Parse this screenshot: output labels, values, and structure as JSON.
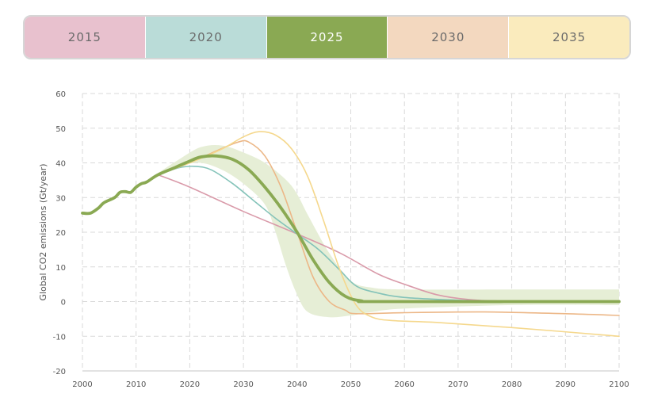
{
  "scenario_tabs": [
    {
      "label": "2015",
      "color": "#e8c1ce",
      "active": false
    },
    {
      "label": "2020",
      "color": "#badcd8",
      "active": false
    },
    {
      "label": "2025",
      "color": "#8aa953",
      "active": true
    },
    {
      "label": "2030",
      "color": "#f3d8bf",
      "active": false
    },
    {
      "label": "2035",
      "color": "#faebbd",
      "active": false
    }
  ],
  "chart_data": {
    "type": "line",
    "title": "",
    "xlabel": "",
    "ylabel": "Global CO2 emissions (Gt/year)",
    "xlim": [
      2000,
      2100
    ],
    "ylim": [
      -20,
      60
    ],
    "x_ticks": [
      "2000",
      "2010",
      "2020",
      "2030",
      "2040",
      "2050",
      "2060",
      "2070",
      "2080",
      "2090",
      "2100"
    ],
    "y_ticks": [
      "60",
      "50",
      "40",
      "30",
      "20",
      "10",
      "0",
      "-10",
      "-20"
    ],
    "grid": true,
    "band": {
      "name": "",
      "color": "#e6eed6",
      "upper": [
        [
          2014,
          37
        ],
        [
          2018,
          41
        ],
        [
          2022,
          44.5
        ],
        [
          2026,
          45
        ],
        [
          2030,
          43
        ],
        [
          2034,
          40
        ],
        [
          2038,
          35
        ],
        [
          2040,
          31
        ],
        [
          2042,
          25
        ],
        [
          2046,
          14
        ],
        [
          2050,
          6
        ],
        [
          2054,
          4
        ],
        [
          2060,
          3.5
        ],
        [
          2080,
          3.5
        ],
        [
          2100,
          3.5
        ]
      ],
      "lower": [
        [
          2014,
          36
        ],
        [
          2018,
          39
        ],
        [
          2022,
          40
        ],
        [
          2026,
          38
        ],
        [
          2030,
          34
        ],
        [
          2034,
          28
        ],
        [
          2036,
          20
        ],
        [
          2038,
          10
        ],
        [
          2040,
          2
        ],
        [
          2042,
          -3
        ],
        [
          2046,
          -4.5
        ],
        [
          2050,
          -4
        ],
        [
          2054,
          -3
        ],
        [
          2060,
          -2
        ],
        [
          2080,
          -1
        ],
        [
          2100,
          -1
        ]
      ]
    },
    "series": [
      {
        "name": "2015",
        "color": "#d99aa9",
        "width": 1.6,
        "points": [
          [
            2014,
            36.6
          ],
          [
            2020,
            33
          ],
          [
            2030,
            26
          ],
          [
            2040,
            19.5
          ],
          [
            2048,
            14
          ],
          [
            2055,
            8
          ],
          [
            2060,
            5
          ],
          [
            2066,
            2
          ],
          [
            2072,
            0.6
          ],
          [
            2080,
            0.1
          ],
          [
            2100,
            0
          ]
        ]
      },
      {
        "name": "2020",
        "color": "#84c3b9",
        "width": 1.6,
        "points": [
          [
            2014,
            36.6
          ],
          [
            2018,
            38.6
          ],
          [
            2021,
            39
          ],
          [
            2024,
            38
          ],
          [
            2028,
            34
          ],
          [
            2032,
            29
          ],
          [
            2036,
            24
          ],
          [
            2040,
            19.5
          ],
          [
            2044,
            15
          ],
          [
            2048,
            9
          ],
          [
            2051,
            4.5
          ],
          [
            2055,
            2.5
          ],
          [
            2060,
            1.2
          ],
          [
            2070,
            0.4
          ],
          [
            2080,
            0.1
          ],
          [
            2100,
            0
          ]
        ]
      },
      {
        "name": "2030",
        "color": "#ecb787",
        "width": 1.6,
        "points": [
          [
            2014,
            36.6
          ],
          [
            2020,
            40
          ],
          [
            2025,
            43.5
          ],
          [
            2029,
            46
          ],
          [
            2031,
            46
          ],
          [
            2034,
            42
          ],
          [
            2037,
            33
          ],
          [
            2040,
            20
          ],
          [
            2043,
            7
          ],
          [
            2046,
            0
          ],
          [
            2049,
            -2.5
          ],
          [
            2051,
            -3.5
          ],
          [
            2060,
            -3.2
          ],
          [
            2075,
            -3
          ],
          [
            2090,
            -3.5
          ],
          [
            2100,
            -4
          ]
        ]
      },
      {
        "name": "2035",
        "color": "#f5d88d",
        "width": 1.6,
        "points": [
          [
            2014,
            36.6
          ],
          [
            2020,
            40
          ],
          [
            2026,
            44
          ],
          [
            2030,
            47.5
          ],
          [
            2033,
            49
          ],
          [
            2036,
            48
          ],
          [
            2039,
            44
          ],
          [
            2042,
            36
          ],
          [
            2045,
            23
          ],
          [
            2048,
            9
          ],
          [
            2051,
            -1
          ],
          [
            2054,
            -4.5
          ],
          [
            2058,
            -5.5
          ],
          [
            2066,
            -6
          ],
          [
            2080,
            -7.5
          ],
          [
            2100,
            -10
          ]
        ]
      },
      {
        "name": "2025",
        "color": "#8aa953",
        "width": 3.8,
        "points": [
          [
            2000,
            25.5
          ],
          [
            2001.5,
            25.5
          ],
          [
            2003,
            27
          ],
          [
            2004,
            28.5
          ],
          [
            2006,
            30
          ],
          [
            2007,
            31.5
          ],
          [
            2008,
            31.7
          ],
          [
            2009,
            31.5
          ],
          [
            2010,
            33
          ],
          [
            2011,
            34
          ],
          [
            2012,
            34.5
          ],
          [
            2014,
            36.5
          ],
          [
            2017,
            38.5
          ],
          [
            2020,
            40.5
          ],
          [
            2022,
            41.7
          ],
          [
            2025,
            42
          ],
          [
            2028,
            41
          ],
          [
            2031,
            38
          ],
          [
            2034,
            33
          ],
          [
            2037,
            27
          ],
          [
            2040,
            20
          ],
          [
            2043,
            12
          ],
          [
            2046,
            5.5
          ],
          [
            2049,
            1.5
          ],
          [
            2052,
            0.2
          ],
          [
            2056,
            0
          ],
          [
            2100,
            0
          ]
        ]
      }
    ]
  }
}
